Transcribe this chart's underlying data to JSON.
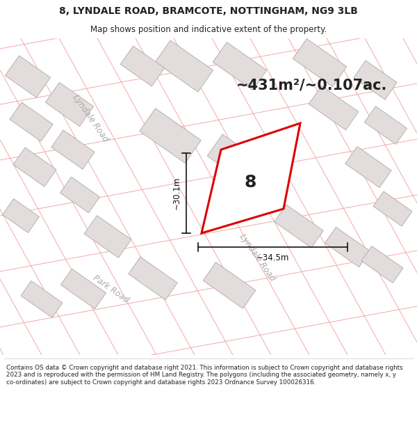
{
  "title_line1": "8, LYNDALE ROAD, BRAMCOTE, NOTTINGHAM, NG9 3LB",
  "title_line2": "Map shows position and indicative extent of the property.",
  "area_label": "~431m²/~0.107ac.",
  "number_label": "8",
  "dim_horizontal": "~34.5m",
  "dim_vertical": "~30.1m",
  "road_label1": "Lyndale Road",
  "road_label2": "Lyndale Road",
  "road_label3": "Park Road",
  "footer_text": "Contains OS data © Crown copyright and database right 2021. This information is subject to Crown copyright and database rights 2023 and is reproduced with the permission of HM Land Registry. The polygons (including the associated geometry, namely x, y co-ordinates) are subject to Crown copyright and database rights 2023 Ordnance Survey 100026316.",
  "map_bg": "#f7f5f5",
  "road_color": "#ffffff",
  "building_fill": "#e2dcdc",
  "building_edge": "#b8b0b0",
  "highlight_fill": "#ffffff",
  "highlight_edge": "#dd0000",
  "road_line_color": "#f0a0a0",
  "text_color": "#222222",
  "label_color": "#aaaaaa",
  "dim_color": "#111111"
}
